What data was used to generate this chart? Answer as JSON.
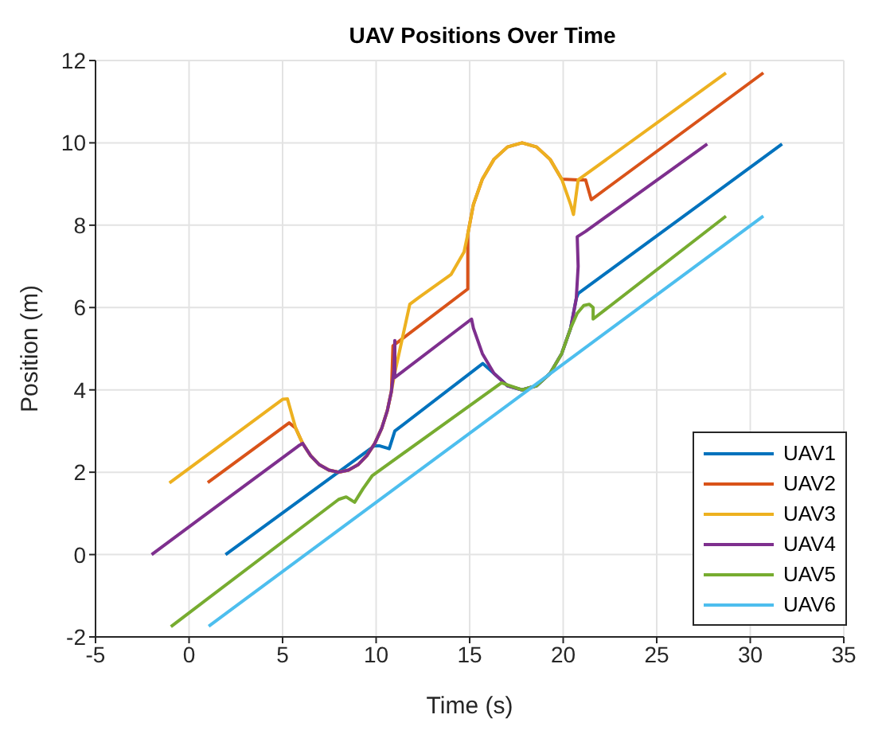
{
  "chart_data": {
    "type": "line",
    "title": "UAV Positions Over Time",
    "xlabel": "Time (s)",
    "ylabel": "Position (m)",
    "xlim": [
      -5,
      35
    ],
    "xticks": [
      -5,
      0,
      5,
      10,
      15,
      20,
      25,
      30,
      35
    ],
    "ylim": [
      -2,
      12
    ],
    "yticks": [
      -2,
      0,
      2,
      4,
      6,
      8,
      10,
      12
    ],
    "grid": true,
    "legend": "bottom right",
    "series": [
      {
        "name": "UAV1",
        "color": "#0072bd",
        "x": [
          1.95,
          9.9,
          10.2,
          10.7,
          11.0,
          15.7,
          16.3,
          17.02,
          17.8,
          18.58,
          19.3,
          19.92,
          20.4,
          20.7,
          20.8,
          31.7
        ],
        "values": [
          0,
          2.64,
          2.64,
          2.57,
          3.0,
          4.64,
          4.4,
          4.1,
          4.0,
          4.1,
          4.4,
          4.88,
          5.5,
          6.22,
          6.34,
          9.97
        ]
      },
      {
        "name": "UAV2",
        "color": "#d95319",
        "x": [
          1.0,
          5.35,
          5.7,
          6.07,
          6.5,
          6.97,
          7.48,
          8,
          8.52,
          9.03,
          9.5,
          9.93,
          10.3,
          10.6,
          10.82,
          10.9,
          14.9,
          14.9,
          15.2,
          15.68,
          16.3,
          17.02,
          17.8,
          18.58,
          19.3,
          19.92,
          20.8,
          21.2,
          21.5,
          30.7
        ],
        "values": [
          1.75,
          3.2,
          3.07,
          2.7,
          2.4,
          2.18,
          2.05,
          2,
          2.05,
          2.18,
          2.4,
          2.7,
          3.07,
          3.5,
          3.97,
          5.07,
          6.45,
          7.78,
          8.5,
          9.12,
          9.6,
          9.9,
          10,
          9.9,
          9.6,
          9.12,
          9.1,
          9.1,
          8.62,
          11.7
        ]
      },
      {
        "name": "UAV3",
        "color": "#edb120",
        "x": [
          -1.05,
          5.0,
          5.26,
          5.7,
          6.07,
          6.5,
          6.97,
          7.48,
          8,
          8.52,
          9.03,
          9.5,
          9.93,
          10.3,
          10.6,
          10.82,
          11.0,
          11.8,
          12.3,
          14.0,
          14.7,
          14.9,
          15.2,
          15.68,
          16.3,
          17.02,
          17.8,
          18.58,
          19.3,
          19.92,
          20.4,
          20.55,
          20.8,
          28.7
        ],
        "values": [
          1.74,
          3.77,
          3.78,
          3.07,
          2.7,
          2.4,
          2.18,
          2.05,
          2,
          2.05,
          2.18,
          2.4,
          2.7,
          3.07,
          3.5,
          3.97,
          4.42,
          6.08,
          6.25,
          6.8,
          7.35,
          7.78,
          8.5,
          9.12,
          9.6,
          9.9,
          10,
          9.9,
          9.6,
          9.12,
          8.5,
          8.26,
          9.1,
          11.7
        ]
      },
      {
        "name": "UAV4",
        "color": "#7e2f8e",
        "x": [
          -2.0,
          5.85,
          6.07,
          6.5,
          6.97,
          7.48,
          8,
          8.52,
          9.03,
          9.5,
          9.93,
          10.3,
          10.6,
          10.82,
          10.95,
          11.0,
          11.0,
          15.1,
          15.2,
          15.68,
          16.3,
          17.02,
          17.8,
          18.58,
          19.3,
          19.92,
          20.4,
          20.7,
          20.8,
          20.75,
          21.2,
          27.7
        ],
        "values": [
          0,
          2.64,
          2.7,
          2.4,
          2.18,
          2.05,
          2,
          2.05,
          2.18,
          2.4,
          2.7,
          3.07,
          3.5,
          3.97,
          4.48,
          5.2,
          4.3,
          5.72,
          5.5,
          4.88,
          4.4,
          4.1,
          4.0,
          4.1,
          4.4,
          4.88,
          5.5,
          6.22,
          7,
          7.72,
          7.85,
          9.97
        ]
      },
      {
        "name": "UAV5",
        "color": "#77ac30",
        "x": [
          -0.97,
          8.0,
          8.4,
          8.85,
          9.3,
          9.8,
          16.7,
          17.8,
          18.58,
          19.3,
          19.92,
          20.4,
          20.75,
          21.1,
          21.4,
          21.6,
          21.6,
          28.7
        ],
        "values": [
          -1.75,
          1.34,
          1.4,
          1.27,
          1.6,
          1.92,
          4.17,
          4.0,
          4.1,
          4.4,
          4.88,
          5.5,
          5.86,
          6.05,
          6.08,
          6.0,
          5.72,
          8.22
        ]
      },
      {
        "name": "UAV6",
        "color": "#4dbeee",
        "x": [
          1.05,
          30.7
        ],
        "values": [
          -1.74,
          8.22
        ]
      }
    ]
  }
}
